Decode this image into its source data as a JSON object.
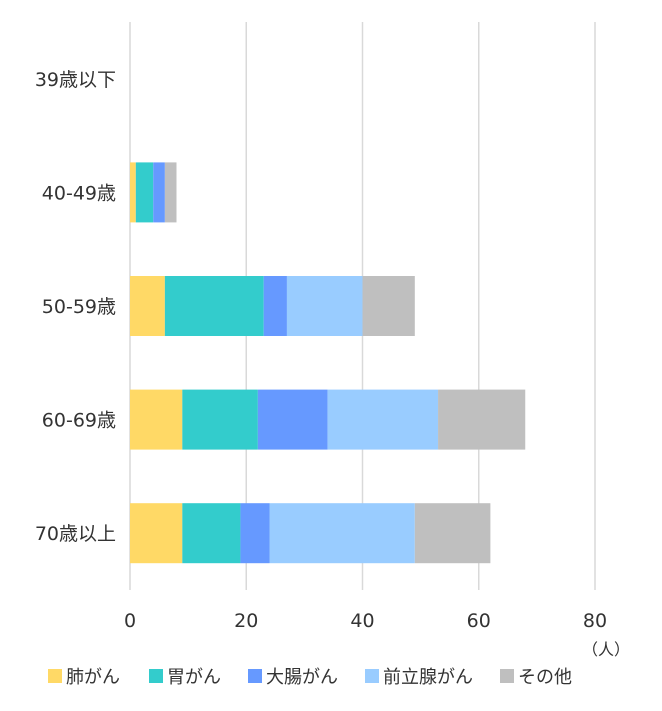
{
  "chart_data": {
    "type": "bar",
    "orientation": "horizontal",
    "stacked": true,
    "categories": [
      "39歳以下",
      "40-49歳",
      "50-59歳",
      "60-69歳",
      "70歳以上"
    ],
    "series": [
      {
        "name": "肺がん",
        "color": "#FFD966",
        "values": [
          0,
          1,
          6,
          9,
          9
        ]
      },
      {
        "name": "胃がん",
        "color": "#33CCCC",
        "values": [
          0,
          3,
          17,
          13,
          10
        ]
      },
      {
        "name": "大腸がん",
        "color": "#6699FF",
        "values": [
          0,
          2,
          4,
          12,
          5
        ]
      },
      {
        "name": "前立腺がん",
        "color": "#99CCFF",
        "values": [
          0,
          0,
          13,
          19,
          25
        ]
      },
      {
        "name": "その他",
        "color": "#BFBFBF",
        "values": [
          0,
          2,
          9,
          15,
          13
        ]
      }
    ],
    "x_ticks": [
      "0",
      "20",
      "40",
      "60",
      "80"
    ],
    "xlim": [
      0,
      80
    ],
    "x_unit_label": "（人）",
    "grid": true,
    "legend_position": "bottom"
  }
}
